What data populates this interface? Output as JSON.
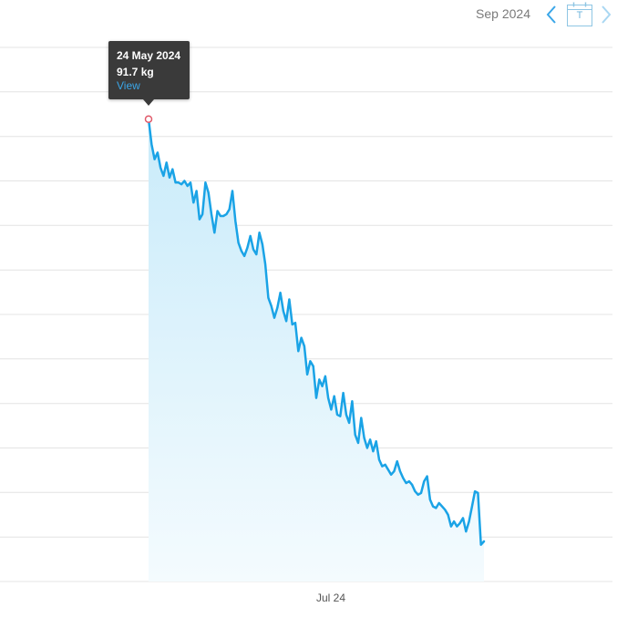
{
  "header": {
    "month_label": "Sep 2024",
    "calendar_today_letter": "T"
  },
  "tooltip": {
    "date": "24 May 2024",
    "value": "91.7 kg",
    "link": "View"
  },
  "colors": {
    "line": "#1aa3e6",
    "fill_top": "#c9ebfa",
    "fill_bottom": "#f4fbfe",
    "grid": "#e4e4e4",
    "nav_arrow": "#3aa6e8",
    "nav_arrow_disabled": "#a9d7f2",
    "marker": "#e05a6a"
  },
  "chart_data": {
    "type": "area",
    "title": "",
    "xlabel": "",
    "ylabel": "",
    "x_tick_labels": [
      "Jul 24"
    ],
    "grid": "horizontal",
    "y_axis_labels_visible": false,
    "series": [
      {
        "unit": "kg",
        "points": [
          [
            "2024-05-24",
            91.7
          ],
          [
            "2024-05-25",
            90.2
          ],
          [
            "2024-05-26",
            89.3
          ],
          [
            "2024-05-27",
            89.7
          ],
          [
            "2024-05-28",
            88.8
          ],
          [
            "2024-05-29",
            88.3
          ],
          [
            "2024-05-30",
            89.1
          ],
          [
            "2024-05-31",
            88.2
          ],
          [
            "2024-06-01",
            88.7
          ],
          [
            "2024-06-02",
            87.9
          ],
          [
            "2024-06-03",
            87.9
          ],
          [
            "2024-06-04",
            87.8
          ],
          [
            "2024-06-05",
            88.0
          ],
          [
            "2024-06-06",
            87.7
          ],
          [
            "2024-06-07",
            87.9
          ],
          [
            "2024-06-08",
            86.7
          ],
          [
            "2024-06-09",
            87.4
          ],
          [
            "2024-06-10",
            85.7
          ],
          [
            "2024-06-11",
            86.0
          ],
          [
            "2024-06-12",
            87.9
          ],
          [
            "2024-06-13",
            87.3
          ],
          [
            "2024-06-14",
            86.0
          ],
          [
            "2024-06-15",
            84.9
          ],
          [
            "2024-06-16",
            86.2
          ],
          [
            "2024-06-17",
            85.9
          ],
          [
            "2024-06-18",
            85.9
          ],
          [
            "2024-06-19",
            86.0
          ],
          [
            "2024-06-20",
            86.3
          ],
          [
            "2024-06-21",
            87.4
          ],
          [
            "2024-06-22",
            85.6
          ],
          [
            "2024-06-23",
            84.3
          ],
          [
            "2024-06-24",
            83.8
          ],
          [
            "2024-06-25",
            83.5
          ],
          [
            "2024-06-26",
            84.0
          ],
          [
            "2024-06-27",
            84.7
          ],
          [
            "2024-06-28",
            83.9
          ],
          [
            "2024-06-29",
            83.6
          ],
          [
            "2024-06-30",
            84.9
          ],
          [
            "2024-07-01",
            84.2
          ],
          [
            "2024-07-02",
            83.0
          ],
          [
            "2024-07-03",
            81.0
          ],
          [
            "2024-07-04",
            80.5
          ],
          [
            "2024-07-05",
            79.8
          ],
          [
            "2024-07-06",
            80.4
          ],
          [
            "2024-07-07",
            81.3
          ],
          [
            "2024-07-08",
            80.2
          ],
          [
            "2024-07-09",
            79.6
          ],
          [
            "2024-07-10",
            80.9
          ],
          [
            "2024-07-11",
            79.4
          ],
          [
            "2024-07-12",
            79.5
          ],
          [
            "2024-07-13",
            77.8
          ],
          [
            "2024-07-14",
            78.6
          ],
          [
            "2024-07-15",
            78.1
          ],
          [
            "2024-07-16",
            76.4
          ],
          [
            "2024-07-17",
            77.2
          ],
          [
            "2024-07-18",
            76.9
          ],
          [
            "2024-07-19",
            75.0
          ],
          [
            "2024-07-20",
            76.1
          ],
          [
            "2024-07-21",
            75.7
          ],
          [
            "2024-07-22",
            76.3
          ],
          [
            "2024-07-23",
            75.0
          ],
          [
            "2024-07-24",
            74.3
          ],
          [
            "2024-07-25",
            75.1
          ],
          [
            "2024-07-26",
            74.0
          ],
          [
            "2024-07-27",
            73.9
          ],
          [
            "2024-07-28",
            75.3
          ],
          [
            "2024-07-29",
            74.0
          ],
          [
            "2024-07-30",
            73.5
          ],
          [
            "2024-07-31",
            74.8
          ],
          [
            "2024-08-01",
            72.8
          ],
          [
            "2024-08-02",
            72.3
          ],
          [
            "2024-08-03",
            73.8
          ],
          [
            "2024-08-04",
            72.6
          ],
          [
            "2024-08-05",
            72.0
          ],
          [
            "2024-08-06",
            72.5
          ],
          [
            "2024-08-07",
            71.8
          ],
          [
            "2024-08-08",
            72.4
          ],
          [
            "2024-08-09",
            71.3
          ],
          [
            "2024-08-10",
            70.9
          ],
          [
            "2024-08-11",
            71.0
          ],
          [
            "2024-08-12",
            70.7
          ],
          [
            "2024-08-13",
            70.4
          ],
          [
            "2024-08-14",
            70.6
          ],
          [
            "2024-08-15",
            71.2
          ],
          [
            "2024-08-16",
            70.6
          ],
          [
            "2024-08-17",
            70.2
          ],
          [
            "2024-08-18",
            69.9
          ],
          [
            "2024-08-19",
            70.0
          ],
          [
            "2024-08-20",
            69.8
          ],
          [
            "2024-08-21",
            69.4
          ],
          [
            "2024-08-22",
            69.2
          ],
          [
            "2024-08-23",
            69.3
          ],
          [
            "2024-08-24",
            70.0
          ],
          [
            "2024-08-25",
            70.3
          ],
          [
            "2024-08-26",
            68.9
          ],
          [
            "2024-08-27",
            68.5
          ],
          [
            "2024-08-28",
            68.4
          ],
          [
            "2024-08-29",
            68.7
          ],
          [
            "2024-08-30",
            68.5
          ],
          [
            "2024-08-31",
            68.3
          ],
          [
            "2024-09-01",
            68.0
          ],
          [
            "2024-09-02",
            67.3
          ],
          [
            "2024-09-03",
            67.6
          ],
          [
            "2024-09-04",
            67.3
          ],
          [
            "2024-09-05",
            67.5
          ],
          [
            "2024-09-06",
            67.8
          ],
          [
            "2024-09-07",
            67.0
          ],
          [
            "2024-09-08",
            67.6
          ],
          [
            "2024-09-09",
            68.5
          ],
          [
            "2024-09-10",
            69.4
          ],
          [
            "2024-09-11",
            69.3
          ],
          [
            "2024-09-12",
            66.2
          ],
          [
            "2024-09-13",
            66.4
          ]
        ]
      }
    ],
    "highlighted_point": {
      "x": "2024-05-24",
      "y": 91.7
    }
  }
}
